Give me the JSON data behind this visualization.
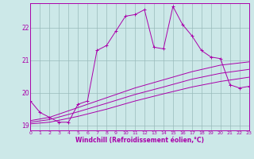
{
  "xlabel": "Windchill (Refroidissement éolien,°C)",
  "bg_color": "#cce8e8",
  "line_color": "#aa00aa",
  "grid_color": "#99bbbb",
  "x_jagged": [
    0,
    1,
    2,
    3,
    4,
    5,
    6,
    7,
    8,
    9,
    10,
    11,
    12,
    13,
    14,
    15,
    16,
    17,
    18,
    19,
    20,
    21,
    22,
    23
  ],
  "y_jagged": [
    19.75,
    19.4,
    19.25,
    19.1,
    19.1,
    19.65,
    19.75,
    21.3,
    21.45,
    21.9,
    22.35,
    22.4,
    22.55,
    21.4,
    21.35,
    22.65,
    22.1,
    21.75,
    21.3,
    21.1,
    21.05,
    20.25,
    20.15,
    20.2
  ],
  "x_smooth1": [
    0,
    2,
    5,
    8,
    11,
    14,
    17,
    20,
    23
  ],
  "y_smooth1": [
    19.15,
    19.25,
    19.55,
    19.85,
    20.15,
    20.4,
    20.65,
    20.85,
    20.95
  ],
  "x_smooth2": [
    0,
    2,
    5,
    8,
    11,
    14,
    17,
    20,
    23
  ],
  "y_smooth2": [
    19.1,
    19.18,
    19.42,
    19.68,
    19.95,
    20.18,
    20.42,
    20.6,
    20.72
  ],
  "x_smooth3": [
    0,
    2,
    5,
    8,
    11,
    14,
    17,
    20,
    23
  ],
  "y_smooth3": [
    19.05,
    19.1,
    19.28,
    19.5,
    19.75,
    19.97,
    20.18,
    20.35,
    20.48
  ],
  "xlim": [
    0,
    23
  ],
  "ylim": [
    18.85,
    22.75
  ],
  "yticks": [
    19,
    20,
    21,
    22
  ],
  "xticks": [
    0,
    1,
    2,
    3,
    4,
    5,
    6,
    7,
    8,
    9,
    10,
    11,
    12,
    13,
    14,
    15,
    16,
    17,
    18,
    19,
    20,
    21,
    22,
    23
  ]
}
